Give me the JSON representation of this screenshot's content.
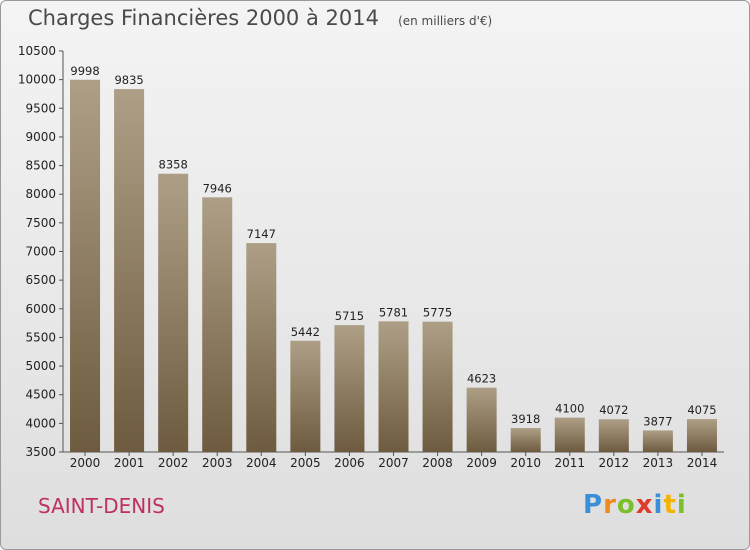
{
  "header": {
    "title": "Charges Financières 2000 à 2014",
    "subtitle": "(en milliers d'€)"
  },
  "footer": {
    "place": "SAINT-DENIS",
    "brand": "Proxiti",
    "brand_letters": [
      {
        "ch": "P",
        "color": "#3a8fd9"
      },
      {
        "ch": "r",
        "color": "#f08a1c"
      },
      {
        "ch": "o",
        "color": "#7bbf2a"
      },
      {
        "ch": "x",
        "color": "#e03a2a"
      },
      {
        "ch": "i",
        "color": "#3a8fd9"
      },
      {
        "ch": "t",
        "color": "#f2b400"
      },
      {
        "ch": "i",
        "color": "#7bbf2a"
      }
    ]
  },
  "colors": {
    "bar_top": "#ad9f86",
    "bar_bottom": "#6e5b3f",
    "axis": "#555555",
    "place_text": "#c0305f"
  },
  "chart_data": {
    "type": "bar",
    "title": "Charges Financières 2000 à 2014",
    "subtitle": "(en milliers d'€)",
    "xlabel": "",
    "ylabel": "",
    "categories": [
      "2000",
      "2001",
      "2002",
      "2003",
      "2004",
      "2005",
      "2006",
      "2007",
      "2008",
      "2009",
      "2010",
      "2011",
      "2012",
      "2013",
      "2014"
    ],
    "values": [
      9998,
      9835,
      8358,
      7946,
      7147,
      5442,
      5715,
      5781,
      5775,
      4623,
      3918,
      4100,
      4072,
      3877,
      4075
    ],
    "ylim": [
      3500,
      10500
    ],
    "yticks": [
      3500,
      4000,
      4500,
      5000,
      5500,
      6000,
      6500,
      7000,
      7500,
      8000,
      8500,
      9000,
      9500,
      10000,
      10500
    ],
    "grid": false,
    "data_labels": true
  }
}
